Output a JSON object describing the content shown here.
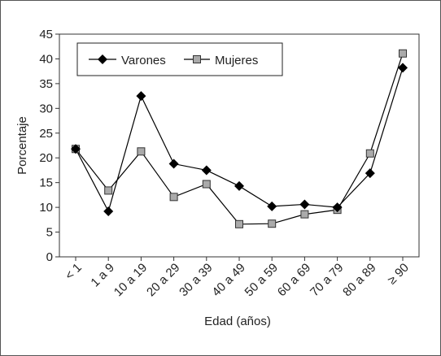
{
  "chart_data": {
    "type": "line",
    "title": "",
    "xlabel": "Edad (años)",
    "ylabel": "Porcentaje",
    "ylim": [
      0,
      45
    ],
    "yticks": [
      0,
      5,
      10,
      15,
      20,
      25,
      30,
      35,
      40,
      45
    ],
    "grid": false,
    "legend_position": "top-left",
    "categories": [
      "< 1",
      "1 a 9",
      "10 a 19",
      "20 a 29",
      "30 a 39",
      "40 a 49",
      "50 a 59",
      "60 a 69",
      "70 a 79",
      "80 a 89",
      "≥ 90"
    ],
    "series": [
      {
        "name": "Varones",
        "marker": "diamond",
        "color": "#000000",
        "values": [
          21.8,
          9.2,
          32.5,
          18.8,
          17.5,
          14.3,
          10.2,
          10.6,
          10.0,
          16.9,
          38.2
        ]
      },
      {
        "name": "Mujeres",
        "marker": "square",
        "color": "#888888",
        "values": [
          21.8,
          13.4,
          21.3,
          12.1,
          14.7,
          6.6,
          6.7,
          8.6,
          9.5,
          20.9,
          41.1
        ]
      }
    ]
  }
}
